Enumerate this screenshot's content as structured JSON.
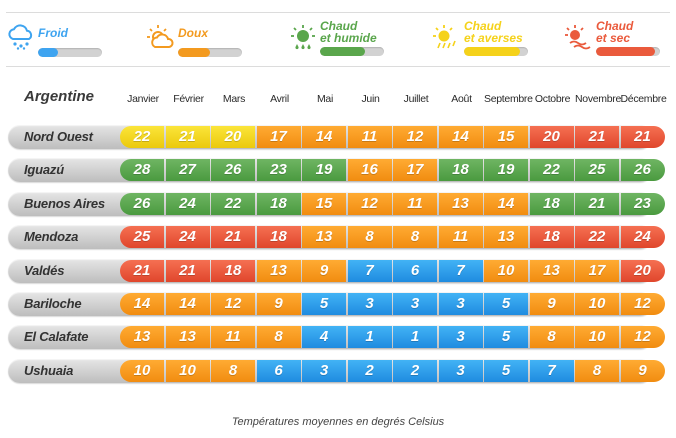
{
  "legend": [
    {
      "key": "cold",
      "line1": "Froid",
      "line2": "",
      "color": "#3ea4f0",
      "icon": "snow-cloud-icon",
      "fill": 0.32
    },
    {
      "key": "mild",
      "line1": "Doux",
      "line2": "",
      "color": "#f39a1f",
      "icon": "sun-cloud-icon",
      "fill": 0.5
    },
    {
      "key": "humid",
      "line1": "Chaud",
      "line2": "et humide",
      "color": "#5aa64c",
      "icon": "sun-rain-icon",
      "fill": 0.7
    },
    {
      "key": "showers",
      "line1": "Chaud",
      "line2": "et averses",
      "color": "#f5d21a",
      "icon": "sun-showers-icon",
      "fill": 0.88
    },
    {
      "key": "dry",
      "line1": "Chaud",
      "line2": "et sec",
      "color": "#ea5a3c",
      "icon": "hot-sun-icon",
      "fill": 0.92
    }
  ],
  "chart_data": {
    "type": "table",
    "title": "Argentine",
    "caption": "Températures moyennes en degrés Celsius",
    "months": [
      "Janvier",
      "Février",
      "Mars",
      "Avril",
      "Mai",
      "Juin",
      "Juillet",
      "Août",
      "Septembre",
      "Octobre",
      "Novembre",
      "Décembre"
    ],
    "rows": [
      {
        "region": "Nord Ouest",
        "values": [
          22,
          21,
          20,
          17,
          14,
          11,
          12,
          14,
          15,
          20,
          21,
          21
        ],
        "categories": [
          "showers",
          "showers",
          "showers",
          "mild",
          "mild",
          "mild",
          "mild",
          "mild",
          "mild",
          "dry",
          "dry",
          "dry"
        ]
      },
      {
        "region": "Iguazú",
        "values": [
          28,
          27,
          26,
          23,
          19,
          16,
          17,
          18,
          19,
          22,
          25,
          26
        ],
        "categories": [
          "humid",
          "humid",
          "humid",
          "humid",
          "humid",
          "mild",
          "mild",
          "humid",
          "humid",
          "humid",
          "humid",
          "humid"
        ]
      },
      {
        "region": "Buenos Aires",
        "values": [
          26,
          24,
          22,
          18,
          15,
          12,
          11,
          13,
          14,
          18,
          21,
          23
        ],
        "categories": [
          "humid",
          "humid",
          "humid",
          "humid",
          "mild",
          "mild",
          "mild",
          "mild",
          "mild",
          "humid",
          "humid",
          "humid"
        ]
      },
      {
        "region": "Mendoza",
        "values": [
          25,
          24,
          21,
          18,
          13,
          8,
          8,
          11,
          13,
          18,
          22,
          24
        ],
        "categories": [
          "dry",
          "dry",
          "dry",
          "dry",
          "mild",
          "mild",
          "mild",
          "mild",
          "mild",
          "dry",
          "dry",
          "dry"
        ]
      },
      {
        "region": "Valdés",
        "values": [
          21,
          21,
          18,
          13,
          9,
          7,
          6,
          7,
          10,
          13,
          17,
          20
        ],
        "categories": [
          "dry",
          "dry",
          "dry",
          "mild",
          "mild",
          "cold",
          "cold",
          "cold",
          "mild",
          "mild",
          "mild",
          "dry"
        ]
      },
      {
        "region": "Bariloche",
        "values": [
          14,
          14,
          12,
          9,
          5,
          3,
          3,
          3,
          5,
          9,
          10,
          12
        ],
        "categories": [
          "mild",
          "mild",
          "mild",
          "mild",
          "cold",
          "cold",
          "cold",
          "cold",
          "cold",
          "mild",
          "mild",
          "mild"
        ]
      },
      {
        "region": "El Calafate",
        "values": [
          13,
          13,
          11,
          8,
          4,
          1,
          1,
          3,
          5,
          8,
          10,
          12
        ],
        "categories": [
          "mild",
          "mild",
          "mild",
          "mild",
          "cold",
          "cold",
          "cold",
          "cold",
          "cold",
          "mild",
          "mild",
          "mild"
        ]
      },
      {
        "region": "Ushuaia",
        "values": [
          10,
          10,
          8,
          6,
          3,
          2,
          2,
          3,
          5,
          7,
          8,
          9
        ],
        "categories": [
          "mild",
          "mild",
          "mild",
          "cold",
          "cold",
          "cold",
          "cold",
          "cold",
          "cold",
          "cold",
          "mild",
          "mild"
        ]
      }
    ]
  }
}
